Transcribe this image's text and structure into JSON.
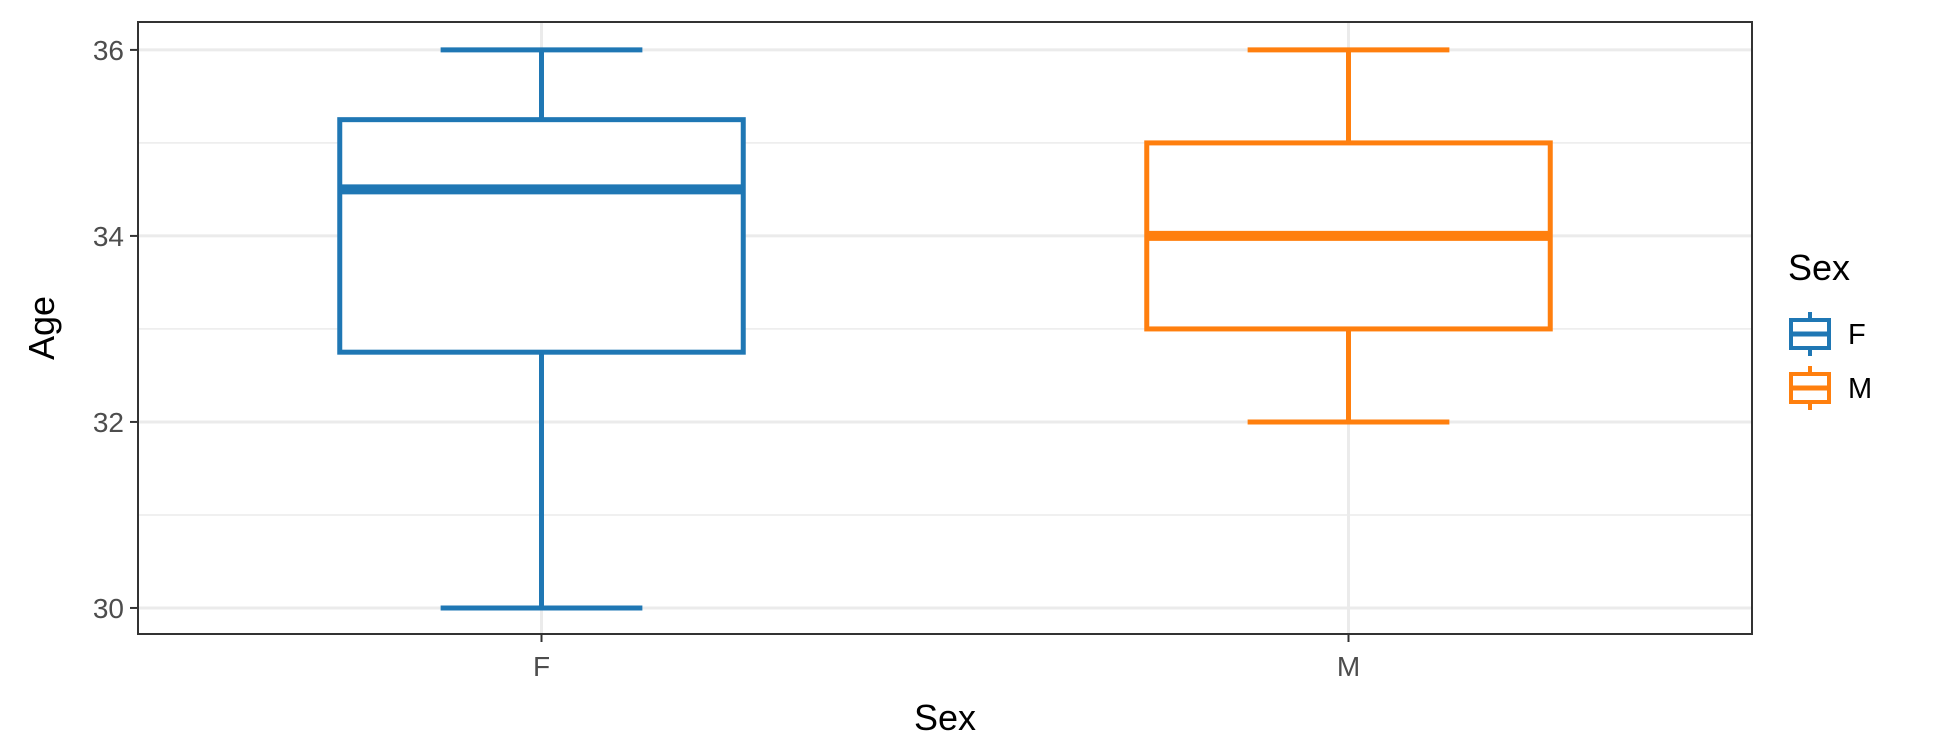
{
  "chart_data": {
    "type": "boxplot",
    "xlabel": "Sex",
    "ylabel": "Age",
    "categories": [
      "F",
      "M"
    ],
    "ylim": [
      29.72,
      36.3
    ],
    "yticks": [
      30,
      32,
      34,
      36
    ],
    "grid": true,
    "legend": {
      "title": "Sex",
      "position": "right",
      "entries": [
        "F",
        "M"
      ]
    },
    "series": [
      {
        "category": "F",
        "min": 30,
        "q1": 32.75,
        "median": 34.5,
        "q3": 35.25,
        "max": 36,
        "color": "#1f77b4"
      },
      {
        "category": "M",
        "min": 32,
        "q1": 33,
        "median": 34,
        "q3": 35,
        "max": 36,
        "color": "#ff7f0e"
      }
    ]
  }
}
